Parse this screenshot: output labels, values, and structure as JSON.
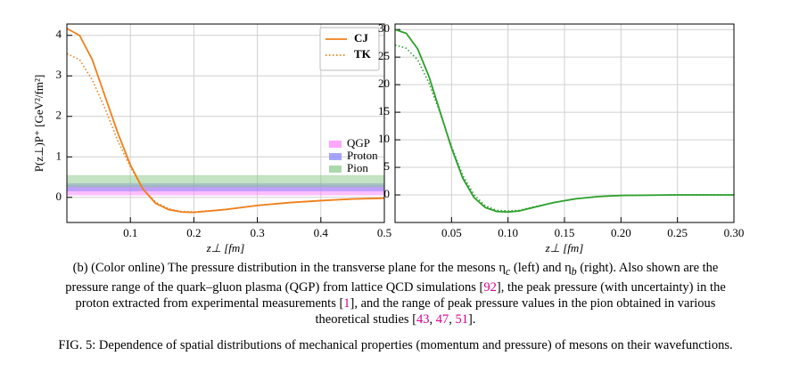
{
  "chart_data": [
    {
      "type": "line",
      "xlabel": "z⊥ [fm]",
      "ylabel": "P(z⊥)P⁺ [GeV²/fm²]",
      "xlim": [
        0,
        0.5
      ],
      "ylim": [
        -0.62,
        4.28
      ],
      "xticks": [
        0.1,
        0.2,
        0.3,
        0.4,
        0.5
      ],
      "yticks": [
        0,
        1,
        2,
        3,
        4
      ],
      "grid": true,
      "legend": "upper right",
      "x": [
        0,
        0.02,
        0.04,
        0.06,
        0.08,
        0.1,
        0.12,
        0.14,
        0.16,
        0.18,
        0.2,
        0.25,
        0.3,
        0.35,
        0.4,
        0.45,
        0.5
      ],
      "series": [
        {
          "name": "CJ",
          "color": "#f07f1a",
          "dash": "solid",
          "values": [
            4.17,
            4.0,
            3.4,
            2.5,
            1.6,
            0.8,
            0.2,
            -0.15,
            -0.3,
            -0.36,
            -0.37,
            -0.3,
            -0.2,
            -0.13,
            -0.08,
            -0.04,
            -0.02
          ]
        },
        {
          "name": "TK",
          "color": "#f07f1a",
          "dash": "dotted",
          "values": [
            3.55,
            3.4,
            2.9,
            2.2,
            1.4,
            0.75,
            0.2,
            -0.12,
            -0.28,
            -0.35,
            -0.36,
            -0.3,
            -0.2,
            -0.13,
            -0.08,
            -0.04,
            -0.02
          ]
        }
      ],
      "bands": [
        {
          "name": "QGP",
          "color": "#ff80ff",
          "range": [
            0.05,
            0.3
          ]
        },
        {
          "name": "Proton",
          "color": "#8080ff",
          "range": [
            0.15,
            0.35
          ]
        },
        {
          "name": "Pion",
          "color": "#88c888",
          "range": [
            0.25,
            0.55
          ]
        }
      ]
    },
    {
      "type": "line",
      "xlabel": "z⊥ [fm]",
      "xlim": [
        0,
        0.3
      ],
      "ylim": [
        -5,
        31
      ],
      "xticks": [
        0.05,
        {
          "value": 0.1,
          "label": "0.10"
        },
        0.15,
        {
          "value": 0.2,
          "label": "0.20"
        },
        0.25,
        {
          "value": 0.3,
          "label": "0.30"
        }
      ],
      "yticks": [
        0,
        5,
        10,
        15,
        20,
        25,
        30
      ],
      "grid": true,
      "x": [
        0,
        0.01,
        0.02,
        0.03,
        0.04,
        0.05,
        0.06,
        0.07,
        0.08,
        0.09,
        0.1,
        0.11,
        0.12,
        0.14,
        0.16,
        0.18,
        0.2,
        0.25,
        0.3
      ],
      "series": [
        {
          "color": "#2ca02c",
          "dash": "solid",
          "values": [
            30,
            29.3,
            26.5,
            21.5,
            15,
            8.5,
            3,
            -0.5,
            -2.3,
            -3,
            -3.1,
            -2.9,
            -2.4,
            -1.4,
            -0.7,
            -0.3,
            -0.1,
            0,
            0
          ]
        },
        {
          "color": "#2ca02c",
          "dash": "dotted",
          "values": [
            27.2,
            26.6,
            24.5,
            20.3,
            14.8,
            8.8,
            3.5,
            0,
            -2,
            -2.8,
            -2.9,
            -2.8,
            -2.3,
            -1.4,
            -0.7,
            -0.3,
            -0.1,
            0,
            0
          ]
        }
      ]
    }
  ],
  "subcaption": {
    "cite_color": "#d6008f",
    "parts": [
      "(b) (Color online) The pressure distribution in the transverse plane for the mesons η",
      {
        "sub": "c"
      },
      " (left) and η",
      {
        "sub": "b"
      },
      " (right). Also shown are the pressure range of the quark–gluon plasma (QGP) from lattice QCD simulations [",
      {
        "cite": "92"
      },
      "], the peak pressure (with uncertainty) in the proton extracted from experimental measurements [",
      {
        "cite": "1"
      },
      "], and the range of peak pressure values in the pion obtained in various theoretical studies [",
      {
        "cite": "43"
      },
      ", ",
      {
        "cite": "47"
      },
      ", ",
      {
        "cite": "51"
      },
      "]."
    ]
  },
  "figure_caption": "FIG. 5: Dependence of spatial distributions of mechanical properties (momentum and pressure) of mesons on their wavefunctions."
}
